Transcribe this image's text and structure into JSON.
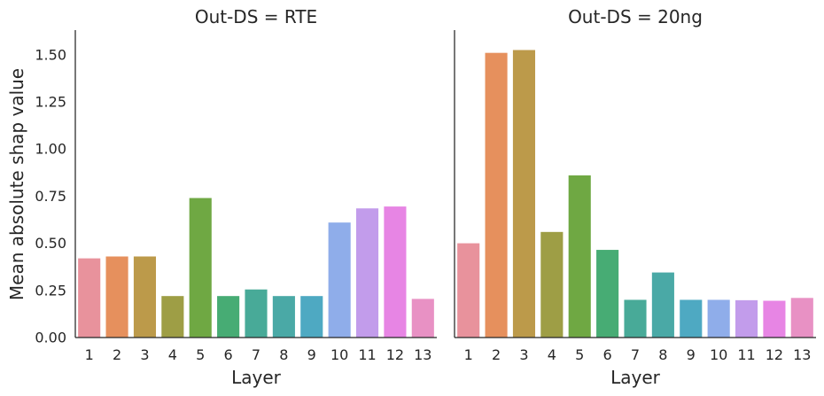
{
  "chart_data": [
    {
      "type": "bar",
      "title": "Out-DS = RTE",
      "xlabel": "Layer",
      "ylabel": "Mean absolute shap value",
      "categories": [
        "1",
        "2",
        "3",
        "4",
        "5",
        "6",
        "7",
        "8",
        "9",
        "10",
        "11",
        "12",
        "13"
      ],
      "values": [
        0.42,
        0.43,
        0.43,
        0.22,
        0.74,
        0.22,
        0.255,
        0.22,
        0.22,
        0.61,
        0.685,
        0.695,
        0.205
      ],
      "ylim": [
        0,
        1.6
      ],
      "yticks": [
        "0.00",
        "0.25",
        "0.50",
        "0.75",
        "1.00",
        "1.25",
        "1.50"
      ],
      "grid": false
    },
    {
      "type": "bar",
      "title": "Out-DS = 20ng",
      "xlabel": "Layer",
      "categories": [
        "1",
        "2",
        "3",
        "4",
        "5",
        "6",
        "7",
        "8",
        "9",
        "10",
        "11",
        "12",
        "13"
      ],
      "values": [
        0.5,
        1.51,
        1.525,
        0.56,
        0.86,
        0.465,
        0.2,
        0.345,
        0.2,
        0.2,
        0.198,
        0.195,
        0.21
      ],
      "ylim": [
        0,
        1.6
      ],
      "grid": false
    }
  ],
  "colors": [
    "#e8929c",
    "#e6905d",
    "#bc9a4a",
    "#9e9e45",
    "#6fa843",
    "#47ac74",
    "#48aa98",
    "#4aa9a6",
    "#4ea9c2",
    "#8fadea",
    "#c29ceb",
    "#e785e4",
    "#e891c4"
  ]
}
